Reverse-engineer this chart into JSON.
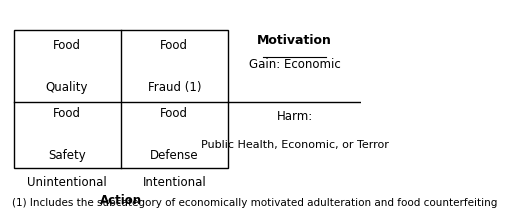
{
  "title": "",
  "bg_color": "#ffffff",
  "grid_line_color": "#000000",
  "text_color": "#000000",
  "cell_texts": {
    "top_left": "Food\n\nQuality",
    "top_right": "Food\n\nFraud (1)",
    "bottom_left": "Food\n\nSafety",
    "bottom_right": "Food\n\nDefense"
  },
  "axis_labels": {
    "x_left": "Unintentional",
    "x_right": "Intentional",
    "x_title": "Action",
    "y_top": "Motivation",
    "y_gain": "Gain: Economic",
    "y_harm1": "Harm:",
    "y_harm2": "Public Health, Economic, or Terror"
  },
  "footnote": "(1) Includes the subcategory of economically motivated adulteration and food counterfeiting",
  "font_size_cell": 8.5,
  "font_size_axis": 8.5,
  "font_size_footnote": 7.5,
  "font_size_motivation": 9.0
}
